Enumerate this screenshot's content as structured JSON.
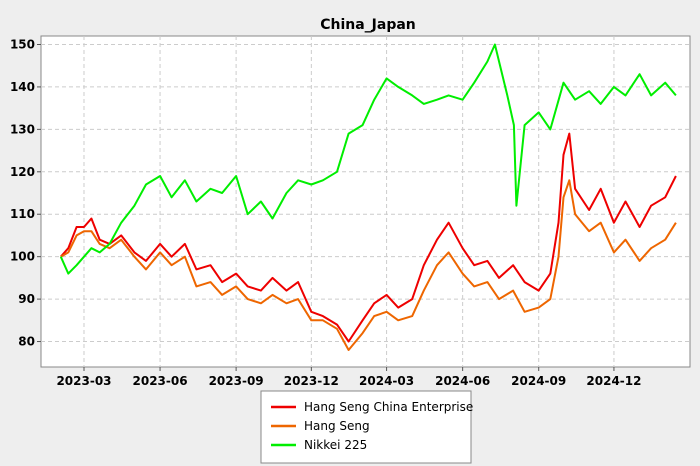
{
  "chart_data": {
    "type": "line",
    "title": "China_Japan",
    "xlabel": "",
    "ylabel": "",
    "x_ticks": [
      "2023-03",
      "2023-06",
      "2023-09",
      "2023-12",
      "2024-03",
      "2024-06",
      "2024-09",
      "2024-12"
    ],
    "y_ticks": [
      80,
      90,
      100,
      110,
      120,
      130,
      140,
      150
    ],
    "ylim": [
      74,
      152
    ],
    "xlim": [
      "2023-01-08",
      "2025-03-03"
    ],
    "grid": true,
    "legend_position": "bottom",
    "series": [
      {
        "name": "Hang Seng China Enterprise",
        "color": "#ee0000",
        "x": [
          "2023-02-01",
          "2023-02-10",
          "2023-02-20",
          "2023-03-01",
          "2023-03-10",
          "2023-03-20",
          "2023-04-01",
          "2023-04-15",
          "2023-05-01",
          "2023-05-15",
          "2023-06-01",
          "2023-06-15",
          "2023-07-01",
          "2023-07-15",
          "2023-08-01",
          "2023-08-15",
          "2023-09-01",
          "2023-09-15",
          "2023-10-01",
          "2023-10-15",
          "2023-11-01",
          "2023-11-15",
          "2023-12-01",
          "2023-12-15",
          "2024-01-01",
          "2024-01-15",
          "2024-02-01",
          "2024-02-15",
          "2024-03-01",
          "2024-03-15",
          "2024-04-01",
          "2024-04-15",
          "2024-05-01",
          "2024-05-15",
          "2024-06-01",
          "2024-06-15",
          "2024-07-01",
          "2024-07-15",
          "2024-08-01",
          "2024-08-15",
          "2024-09-01",
          "2024-09-15",
          "2024-09-25",
          "2024-10-01",
          "2024-10-08",
          "2024-10-15",
          "2024-11-01",
          "2024-11-15",
          "2024-12-01",
          "2024-12-15",
          "2025-01-01",
          "2025-01-15",
          "2025-02-01",
          "2025-02-14"
        ],
        "values": [
          100,
          102,
          107,
          107,
          109,
          104,
          103,
          105,
          101,
          99,
          103,
          100,
          103,
          97,
          98,
          94,
          96,
          93,
          92,
          95,
          92,
          94,
          87,
          86,
          84,
          80,
          85,
          89,
          91,
          88,
          90,
          98,
          104,
          108,
          102,
          98,
          99,
          95,
          98,
          94,
          92,
          96,
          108,
          124,
          129,
          116,
          111,
          116,
          108,
          113,
          107,
          112,
          114,
          119
        ]
      },
      {
        "name": "Hang Seng",
        "color": "#ee6600",
        "x": [
          "2023-02-01",
          "2023-02-10",
          "2023-02-20",
          "2023-03-01",
          "2023-03-10",
          "2023-03-20",
          "2023-04-01",
          "2023-04-15",
          "2023-05-01",
          "2023-05-15",
          "2023-06-01",
          "2023-06-15",
          "2023-07-01",
          "2023-07-15",
          "2023-08-01",
          "2023-08-15",
          "2023-09-01",
          "2023-09-15",
          "2023-10-01",
          "2023-10-15",
          "2023-11-01",
          "2023-11-15",
          "2023-12-01",
          "2023-12-15",
          "2024-01-01",
          "2024-01-15",
          "2024-02-01",
          "2024-02-15",
          "2024-03-01",
          "2024-03-15",
          "2024-04-01",
          "2024-04-15",
          "2024-05-01",
          "2024-05-15",
          "2024-06-01",
          "2024-06-15",
          "2024-07-01",
          "2024-07-15",
          "2024-08-01",
          "2024-08-15",
          "2024-09-01",
          "2024-09-15",
          "2024-09-25",
          "2024-10-01",
          "2024-10-08",
          "2024-10-15",
          "2024-11-01",
          "2024-11-15",
          "2024-12-01",
          "2024-12-15",
          "2025-01-01",
          "2025-01-15",
          "2025-02-01",
          "2025-02-14"
        ],
        "values": [
          100,
          101,
          105,
          106,
          106,
          103,
          102,
          104,
          100,
          97,
          101,
          98,
          100,
          93,
          94,
          91,
          93,
          90,
          89,
          91,
          89,
          90,
          85,
          85,
          83,
          78,
          82,
          86,
          87,
          85,
          86,
          92,
          98,
          101,
          96,
          93,
          94,
          90,
          92,
          87,
          88,
          90,
          100,
          114,
          118,
          110,
          106,
          108,
          101,
          104,
          99,
          102,
          104,
          108
        ]
      },
      {
        "name": "Nikkei 225",
        "color": "#00ee00",
        "x": [
          "2023-02-01",
          "2023-02-10",
          "2023-02-20",
          "2023-03-01",
          "2023-03-10",
          "2023-03-20",
          "2023-04-01",
          "2023-04-15",
          "2023-05-01",
          "2023-05-15",
          "2023-06-01",
          "2023-06-15",
          "2023-07-01",
          "2023-07-15",
          "2023-08-01",
          "2023-08-15",
          "2023-09-01",
          "2023-09-15",
          "2023-10-01",
          "2023-10-15",
          "2023-11-01",
          "2023-11-15",
          "2023-12-01",
          "2023-12-15",
          "2024-01-01",
          "2024-01-15",
          "2024-02-01",
          "2024-02-15",
          "2024-03-01",
          "2024-03-15",
          "2024-04-01",
          "2024-04-15",
          "2024-05-01",
          "2024-05-15",
          "2024-06-01",
          "2024-06-15",
          "2024-07-01",
          "2024-07-10",
          "2024-07-25",
          "2024-08-02",
          "2024-08-05",
          "2024-08-15",
          "2024-09-01",
          "2024-09-15",
          "2024-10-01",
          "2024-10-15",
          "2024-11-01",
          "2024-11-15",
          "2024-12-01",
          "2024-12-15",
          "2025-01-01",
          "2025-01-15",
          "2025-02-01",
          "2025-02-14"
        ],
        "values": [
          100,
          96,
          98,
          100,
          102,
          101,
          103,
          108,
          112,
          117,
          119,
          114,
          118,
          113,
          116,
          115,
          119,
          110,
          113,
          109,
          115,
          118,
          117,
          118,
          120,
          129,
          131,
          137,
          142,
          140,
          138,
          136,
          137,
          138,
          137,
          141,
          146,
          150,
          138,
          131,
          112,
          131,
          134,
          130,
          141,
          137,
          139,
          136,
          140,
          138,
          143,
          138,
          141,
          138
        ]
      }
    ]
  }
}
